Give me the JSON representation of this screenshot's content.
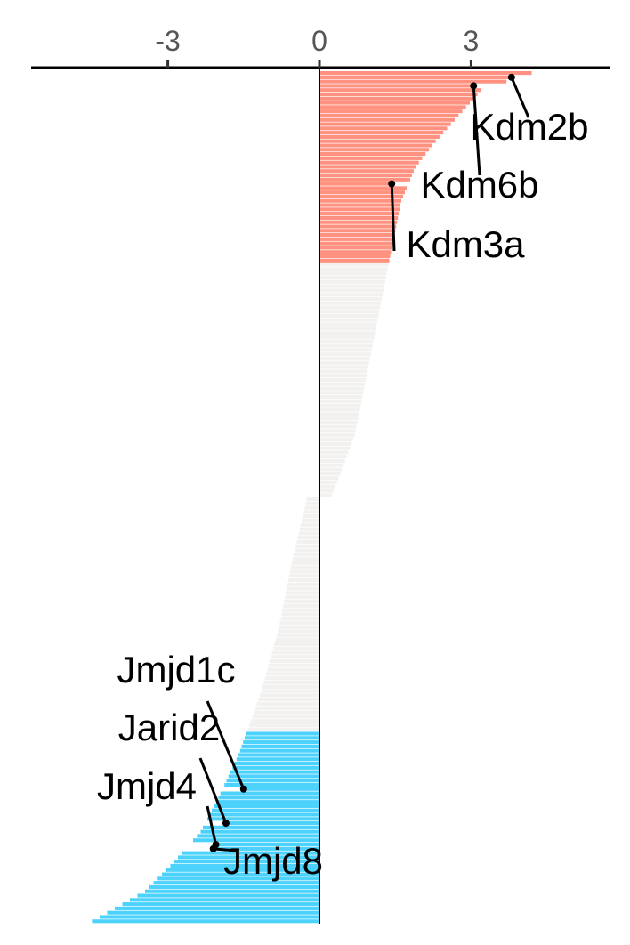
{
  "chart_data": {
    "type": "bar",
    "orientation": "horizontal",
    "title": "",
    "xlabel": "",
    "ylabel": "",
    "x_ticks": [
      -3,
      0,
      3
    ],
    "x_tick_labels": [
      "-3",
      "0",
      "3"
    ],
    "xlim": [
      -5.8,
      5.8
    ],
    "n_bars": 200,
    "colors": {
      "up": "#FF9180",
      "neutral": "#F2F1EF",
      "down": "#4DD2FC",
      "axis": "#000000",
      "tick_text": "#555555"
    },
    "value_profile": [
      {
        "rank": 0,
        "value": 4.2
      },
      {
        "rank": 4,
        "value": 3.2
      },
      {
        "rank": 10,
        "value": 2.75
      },
      {
        "rank": 16,
        "value": 2.3
      },
      {
        "rank": 22,
        "value": 1.9
      },
      {
        "rank": 30,
        "value": 1.62
      },
      {
        "rank": 40,
        "value": 1.45
      },
      {
        "rank": 55,
        "value": 1.2
      },
      {
        "rank": 70,
        "value": 0.95
      },
      {
        "rank": 85,
        "value": 0.7
      },
      {
        "rank": 99,
        "value": 0.25
      },
      {
        "rank": 100,
        "value": -0.25
      },
      {
        "rank": 115,
        "value": -0.55
      },
      {
        "rank": 130,
        "value": -0.8
      },
      {
        "rank": 145,
        "value": -1.15
      },
      {
        "rank": 160,
        "value": -1.6
      },
      {
        "rank": 170,
        "value": -2.0
      },
      {
        "rank": 178,
        "value": -2.35
      },
      {
        "rank": 186,
        "value": -2.95
      },
      {
        "rank": 192,
        "value": -3.45
      },
      {
        "rank": 199,
        "value": -4.5
      }
    ],
    "up_count": 45,
    "down_start": 155,
    "highlighted": [
      {
        "label": "Kdm2b",
        "value": 3.8,
        "rank": 1
      },
      {
        "label": "Kdm6b",
        "value": 3.05,
        "rank": 3
      },
      {
        "label": "Kdm3a",
        "value": 1.43,
        "rank": 26
      },
      {
        "label": "Jmjd1c",
        "value": -1.5,
        "rank": 168
      },
      {
        "label": "Jarid2",
        "value": -1.85,
        "rank": 176
      },
      {
        "label": "Jmjd4",
        "value": -2.05,
        "rank": 181
      },
      {
        "label": "Jmjd8",
        "value": -2.1,
        "rank": 182
      }
    ]
  }
}
